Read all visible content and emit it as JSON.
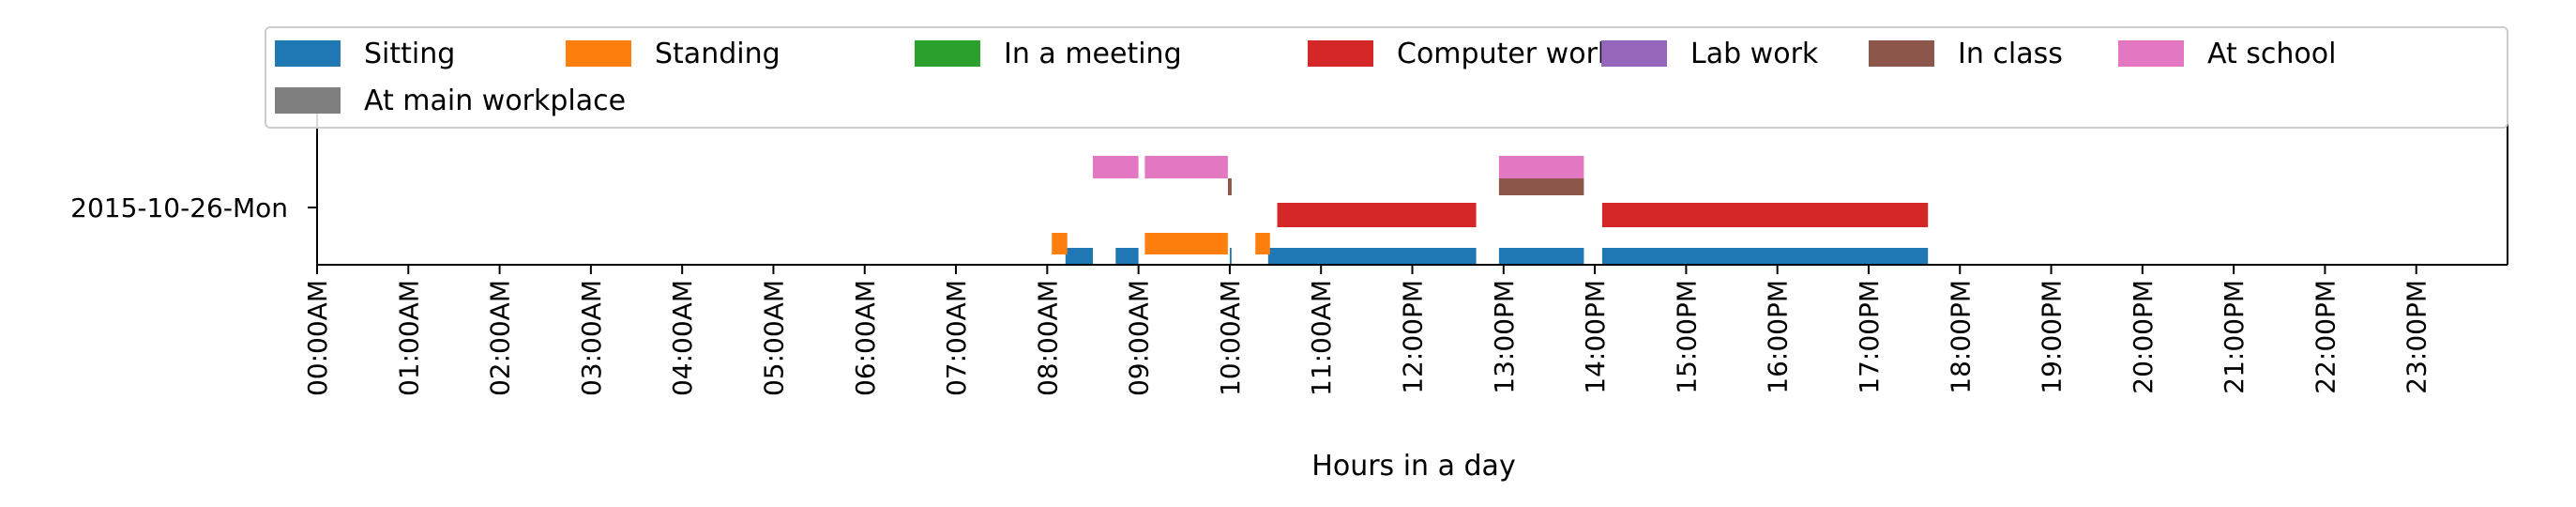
{
  "chart_data": {
    "type": "timeline",
    "xlabel": "Hours in a day",
    "xlim": [
      0,
      24
    ],
    "x_ticks": [
      "00:00AM",
      "01:00AM",
      "02:00AM",
      "03:00AM",
      "04:00AM",
      "05:00AM",
      "06:00AM",
      "07:00AM",
      "08:00AM",
      "09:00AM",
      "10:00AM",
      "11:00AM",
      "12:00PM",
      "13:00PM",
      "14:00PM",
      "15:00PM",
      "16:00PM",
      "17:00PM",
      "18:00PM",
      "19:00PM",
      "20:00PM",
      "21:00PM",
      "22:00PM",
      "23:00PM"
    ],
    "y_categories": [
      "2015-10-26-Mon"
    ],
    "legend_position": "top",
    "series": [
      {
        "name": "Sitting",
        "color": "#1f77b4",
        "intervals": [
          [
            8.2,
            8.5
          ],
          [
            8.75,
            9.0
          ],
          [
            10.0,
            10.02
          ],
          [
            10.42,
            12.7
          ],
          [
            12.95,
            13.88
          ],
          [
            14.08,
            17.65
          ]
        ]
      },
      {
        "name": "Standing",
        "color": "#ff7f0e",
        "intervals": [
          [
            8.05,
            8.22
          ],
          [
            9.07,
            9.98
          ],
          [
            10.28,
            10.44
          ]
        ]
      },
      {
        "name": "In a meeting",
        "color": "#2ca02c",
        "intervals": []
      },
      {
        "name": "Computer work",
        "color": "#d62728",
        "intervals": [
          [
            10.52,
            12.7
          ],
          [
            14.08,
            17.65
          ]
        ]
      },
      {
        "name": "Lab work",
        "color": "#9467bd",
        "intervals": []
      },
      {
        "name": "In class",
        "color": "#8c564b",
        "intervals": [
          [
            9.98,
            10.02
          ],
          [
            12.95,
            13.88
          ]
        ]
      },
      {
        "name": "At school",
        "color": "#e377c2",
        "intervals": [
          [
            8.5,
            9.0
          ],
          [
            9.07,
            9.98
          ],
          [
            12.95,
            13.88
          ]
        ]
      },
      {
        "name": "At main workplace",
        "color": "#7f7f7f",
        "intervals": []
      }
    ]
  }
}
